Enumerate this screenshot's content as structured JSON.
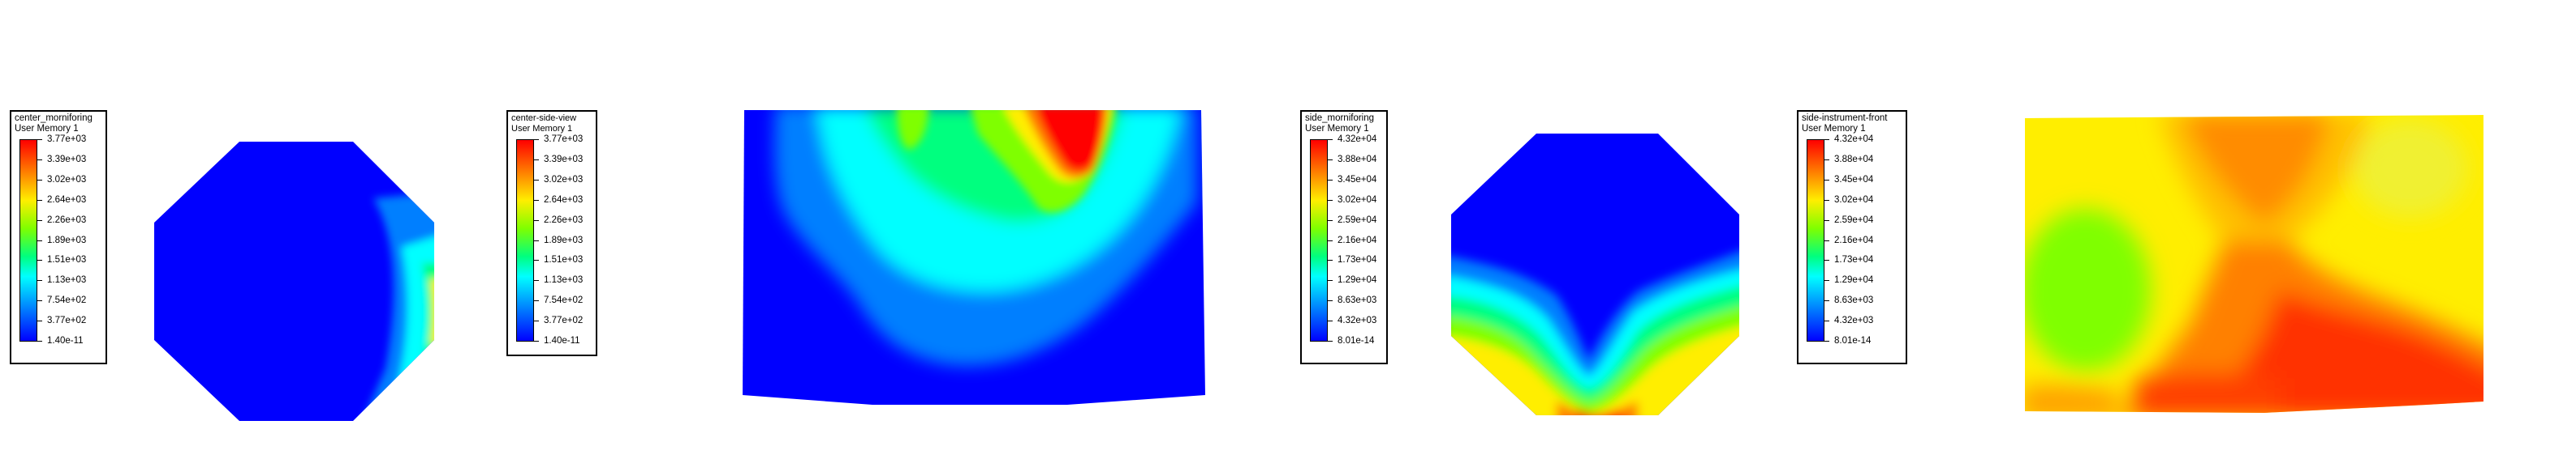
{
  "colors": {
    "max": "#ff0000",
    "orange": "#ff7f00",
    "yellow": "#ffee00",
    "green": "#7fff00",
    "aqua": "#00ff7f",
    "cyan": "#00ffff",
    "lightblue": "#007fff",
    "min": "#0000ff"
  },
  "legends": [
    {
      "title": "center_morniforing",
      "subtitle": "User Memory 1",
      "ticks": [
        "3.77e+03",
        "3.39e+03",
        "3.02e+03",
        "2.64e+03",
        "2.26e+03",
        "1.89e+03",
        "1.51e+03",
        "1.13e+03",
        "7.54e+02",
        "3.77e+02",
        "1.40e-11"
      ]
    },
    {
      "title": "center-side-view",
      "subtitle": "User Memory 1",
      "ticks": [
        "3.77e+03",
        "3.39e+03",
        "3.02e+03",
        "2.64e+03",
        "2.26e+03",
        "1.89e+03",
        "1.51e+03",
        "1.13e+03",
        "7.54e+02",
        "3.77e+02",
        "1.40e-11"
      ]
    },
    {
      "title": "side_morniforing",
      "subtitle": "User Memory 1",
      "ticks": [
        "4.32e+04",
        "3.88e+04",
        "3.45e+04",
        "3.02e+04",
        "2.59e+04",
        "2.16e+04",
        "1.73e+04",
        "1.29e+04",
        "8.63e+03",
        "4.32e+03",
        "8.01e-14"
      ]
    },
    {
      "title": "side-instrument-front",
      "subtitle": "User Memory 1",
      "ticks": [
        "4.32e+04",
        "3.88e+04",
        "3.45e+04",
        "3.02e+04",
        "2.59e+04",
        "2.16e+04",
        "1.73e+04",
        "1.29e+04",
        "8.63e+03",
        "4.32e+03",
        "8.01e-14"
      ]
    }
  ]
}
